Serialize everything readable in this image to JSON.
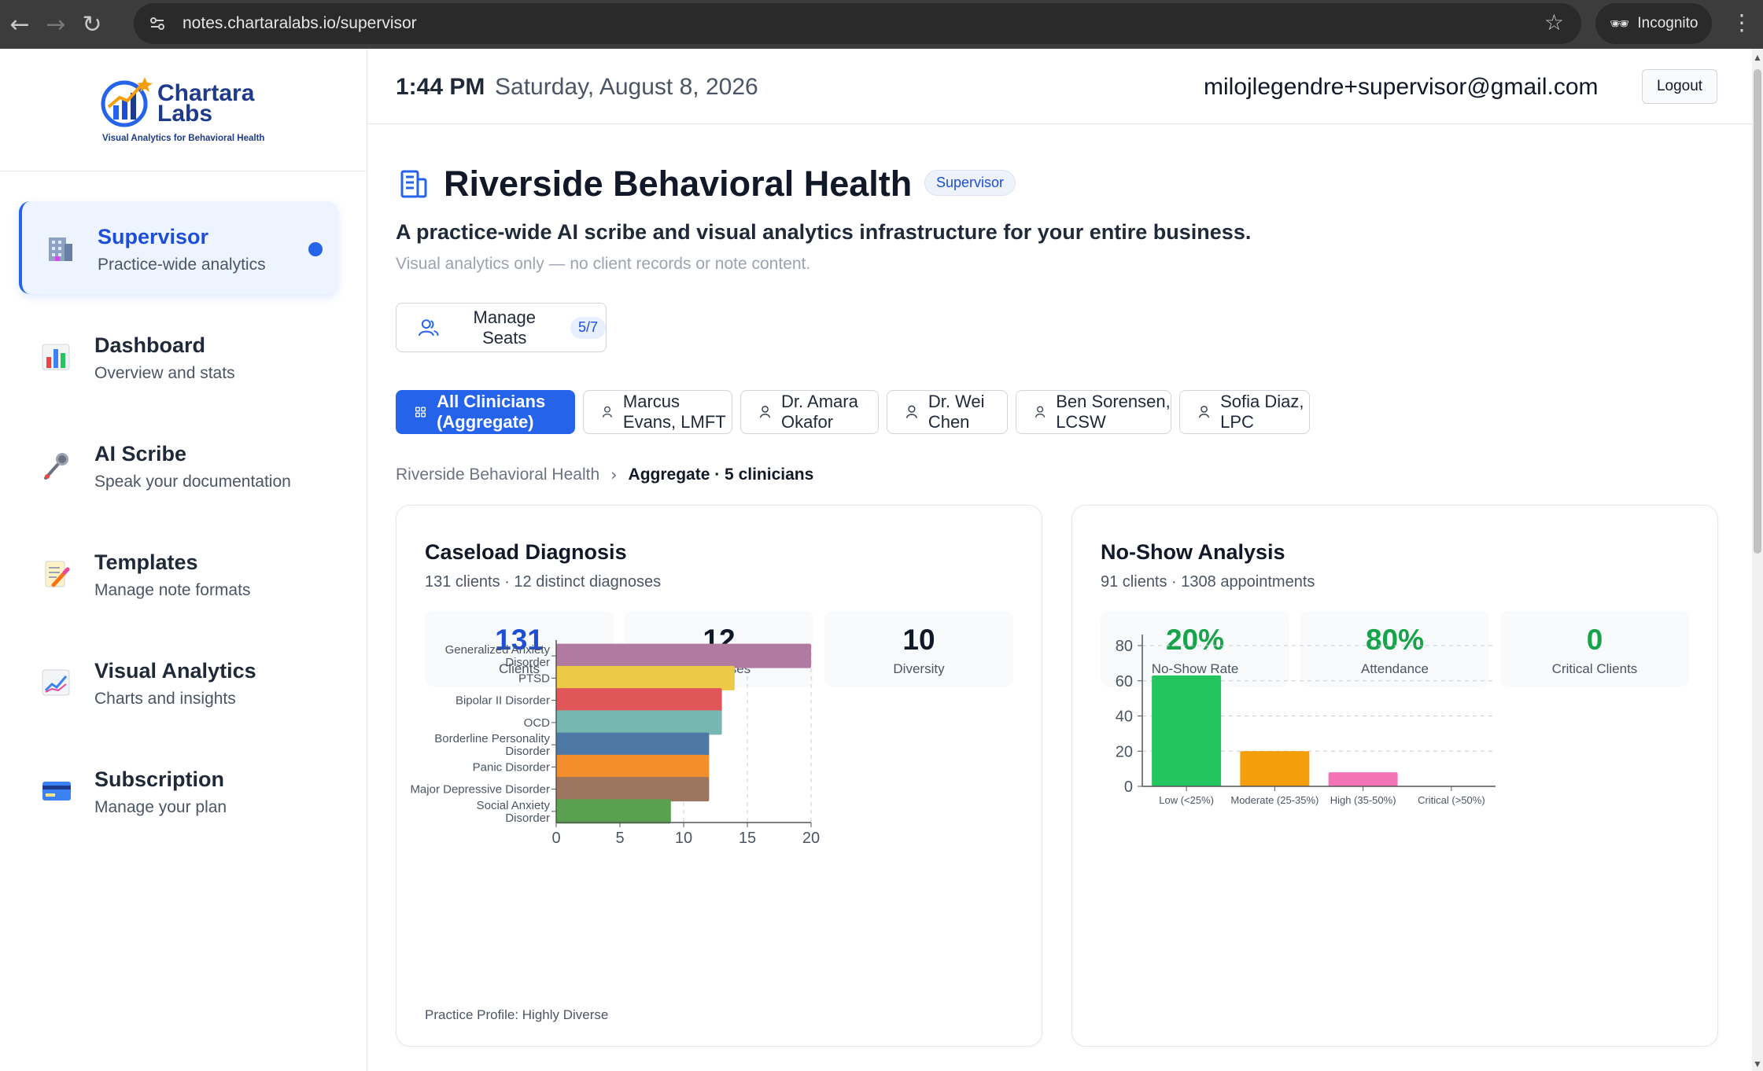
{
  "browser": {
    "url": "notes.chartaralabs.io/supervisor",
    "incognito_label": "Incognito"
  },
  "brand": {
    "name_line1": "Chartara",
    "name_line2": "Labs",
    "tagline": "Visual Analytics for Behavioral Health",
    "color": "#1e3a8a"
  },
  "sidebar": {
    "items": [
      {
        "title": "Supervisor",
        "subtitle": "Practice-wide analytics",
        "icon": "building-icon",
        "active": true
      },
      {
        "title": "Dashboard",
        "subtitle": "Overview and stats",
        "icon": "bar-chart-icon"
      },
      {
        "title": "AI Scribe",
        "subtitle": "Speak your documentation",
        "icon": "microphone-icon"
      },
      {
        "title": "Templates",
        "subtitle": "Manage note formats",
        "icon": "memo-icon"
      },
      {
        "title": "Visual Analytics",
        "subtitle": "Charts and insights",
        "icon": "trend-chart-icon"
      },
      {
        "title": "Subscription",
        "subtitle": "Manage your plan",
        "icon": "credit-card-icon"
      }
    ]
  },
  "topbar": {
    "time": "1:44 PM",
    "date": "Saturday, August 8, 2026",
    "email": "milojlegendre+supervisor@gmail.com",
    "logout_label": "Logout"
  },
  "org": {
    "name": "Riverside Behavioral Health",
    "role_badge": "Supervisor",
    "tagline": "A practice-wide AI scribe and visual analytics infrastructure for your entire business.",
    "note": "Visual analytics only — no client records or note content."
  },
  "seats": {
    "label": "Manage Seats",
    "count": "5/7"
  },
  "clinician_tabs": [
    {
      "label": "All Clinicians (Aggregate)",
      "active": true
    },
    {
      "label": "Marcus Evans, LMFT"
    },
    {
      "label": "Dr. Amara Okafor"
    },
    {
      "label": "Dr. Wei Chen"
    },
    {
      "label": "Ben Sorensen, LCSW"
    },
    {
      "label": "Sofia Diaz, LPC"
    }
  ],
  "breadcrumb": {
    "root": "Riverside Behavioral Health",
    "current": "Aggregate · 5 clinicians"
  },
  "colors": {
    "accent": "#2563eb",
    "success": "#16a34a"
  },
  "caseload": {
    "title": "Caseload Diagnosis",
    "subtitle": "131 clients · 12 distinct diagnoses",
    "stats": [
      {
        "value": "131",
        "label": "Clients",
        "color": "#1d4ed8"
      },
      {
        "value": "12",
        "label": "Diagnoses",
        "color": "#111827"
      },
      {
        "value": "10",
        "label": "Diversity",
        "color": "#111827"
      }
    ],
    "footnote": "Practice Profile: Highly Diverse"
  },
  "noshow": {
    "title": "No-Show Analysis",
    "subtitle": "91 clients · 1308 appointments",
    "stats": [
      {
        "value": "20%",
        "label": "No-Show Rate",
        "color": "#16a34a"
      },
      {
        "value": "80%",
        "label": "Attendance",
        "color": "#16a34a"
      },
      {
        "value": "0",
        "label": "Critical Clients",
        "color": "#16a34a"
      }
    ]
  },
  "chart_data": [
    {
      "type": "bar",
      "orientation": "horizontal",
      "categories": [
        [
          "Generalized Anxiety",
          "Disorder"
        ],
        [
          "PTSD"
        ],
        [
          "Bipolar II Disorder"
        ],
        [
          "OCD"
        ],
        [
          "Borderline Personality",
          "Disorder"
        ],
        [
          "Panic Disorder"
        ],
        [
          "Major Depressive Disorder"
        ],
        [
          "Social Anxiety",
          "Disorder"
        ]
      ],
      "values": [
        20,
        14,
        13,
        13,
        12,
        12,
        12,
        9
      ],
      "colors": [
        "#b07aa1",
        "#edc948",
        "#e15759",
        "#76b7b2",
        "#4e79a7",
        "#f28e2b",
        "#9c755f",
        "#59a14f"
      ],
      "xlim": [
        0,
        20
      ],
      "xticks": [
        0,
        5,
        10,
        15,
        20
      ],
      "grid": "vertical dashed"
    },
    {
      "type": "bar",
      "categories": [
        "Low (<25%)",
        "Moderate (25-35%)",
        "High (35-50%)",
        "Critical (>50%)"
      ],
      "values": [
        63,
        20,
        8,
        0
      ],
      "colors": [
        "#22c55e",
        "#f59e0b",
        "#f472b6",
        "#ef4444"
      ],
      "ylim": [
        0,
        80
      ],
      "yticks": [
        0,
        20,
        40,
        60,
        80
      ],
      "grid": "horizontal dashed"
    }
  ]
}
